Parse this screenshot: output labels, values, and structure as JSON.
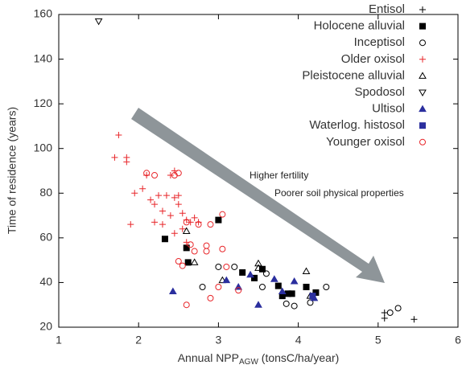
{
  "chart_data": {
    "type": "scatter",
    "xlabel": {
      "text": "Annual NPP",
      "sub": "AGW",
      "rest": " (tonsC/ha/year)"
    },
    "ylabel": "Time of residence (years)",
    "annotations": [
      "Higher fertility",
      "Poorer soil physical properties"
    ],
    "xlim": [
      1,
      6
    ],
    "xticks": [
      1,
      2,
      3,
      4,
      5,
      6
    ],
    "ylim": [
      20,
      160
    ],
    "yticks": [
      20,
      40,
      60,
      80,
      100,
      120,
      140,
      160
    ],
    "legend": "upper right",
    "series": [
      {
        "name": "Entisol",
        "color": "#000000",
        "marker": "plus",
        "filled": false,
        "x": [
          5.08,
          5.08,
          5.45
        ],
        "values": [
          24,
          26.5,
          23.5
        ]
      },
      {
        "name": "Holocene alluvial",
        "color": "#000000",
        "marker": "square",
        "filled": true,
        "x": [
          2.33,
          2.6,
          2.62,
          3.0,
          3.3,
          3.45,
          3.55,
          3.75,
          3.8,
          3.87,
          3.92,
          4.1,
          4.22
        ],
        "values": [
          59.5,
          55.5,
          49,
          68,
          44.5,
          42,
          46,
          38.5,
          34,
          35,
          35,
          38,
          35.5
        ]
      },
      {
        "name": "Inceptisol",
        "color": "#000000",
        "marker": "circle",
        "filled": false,
        "x": [
          2.8,
          3.0,
          3.2,
          3.55,
          3.6,
          3.85,
          3.95,
          4.15,
          4.35,
          5.15,
          5.25
        ],
        "values": [
          38,
          47,
          47,
          38,
          44,
          30.5,
          29.5,
          31,
          38,
          26.5,
          28.5
        ]
      },
      {
        "name": "Older oxisol",
        "color": "#e8262a",
        "marker": "plus",
        "filled": false,
        "x": [
          1.7,
          1.75,
          1.85,
          1.85,
          1.9,
          1.95,
          2.05,
          2.1,
          2.15,
          2.2,
          2.25,
          2.3,
          2.2,
          2.35,
          2.4,
          2.4,
          2.45,
          2.45,
          2.5,
          2.5,
          2.55,
          2.6,
          2.65,
          2.7,
          2.75,
          2.6,
          2.55,
          2.3,
          2.45
        ],
        "values": [
          96,
          106,
          96,
          94,
          66,
          80,
          82,
          88,
          77,
          75,
          79,
          72,
          67,
          79,
          70,
          88,
          90,
          78,
          75,
          79,
          64,
          68,
          67,
          69,
          67,
          58,
          71,
          66,
          62
        ]
      },
      {
        "name": "Pleistocene alluvial",
        "color": "#000000",
        "marker": "triangle",
        "filled": false,
        "x": [
          2.6,
          2.7,
          3.05,
          3.5,
          3.5,
          4.1,
          4.15
        ],
        "values": [
          63,
          49,
          41,
          48.5,
          46.5,
          45,
          34
        ]
      },
      {
        "name": "Spodosol",
        "color": "#000000",
        "marker": "triangle-down",
        "filled": false,
        "x": [
          1.5
        ],
        "values": [
          157
        ]
      },
      {
        "name": "Ultisol",
        "color": "#2b2f9e",
        "marker": "triangle",
        "filled": true,
        "x": [
          2.43,
          3.1,
          3.25,
          3.4,
          3.5,
          3.7,
          3.8,
          3.95,
          4.2
        ],
        "values": [
          36,
          41,
          38,
          43.5,
          30,
          41.5,
          36,
          40.5,
          33
        ]
      },
      {
        "name": "Waterlog. histosol",
        "color": "#2b2f9e",
        "marker": "square",
        "filled": true,
        "x": [
          4.18
        ],
        "values": [
          34
        ]
      },
      {
        "name": "Younger oxisol",
        "color": "#e8262a",
        "marker": "circle",
        "filled": false,
        "x": [
          2.1,
          2.2,
          2.45,
          2.5,
          2.5,
          2.55,
          2.6,
          2.6,
          2.65,
          2.7,
          2.85,
          2.85,
          2.9,
          2.9,
          3.0,
          3.05,
          3.05,
          3.1,
          3.25,
          2.75
        ],
        "values": [
          89,
          88,
          88,
          89,
          49.5,
          47.5,
          30,
          67,
          57,
          54,
          56.5,
          54,
          66,
          33,
          38,
          70.5,
          55,
          47,
          36.5,
          66
        ]
      }
    ]
  }
}
